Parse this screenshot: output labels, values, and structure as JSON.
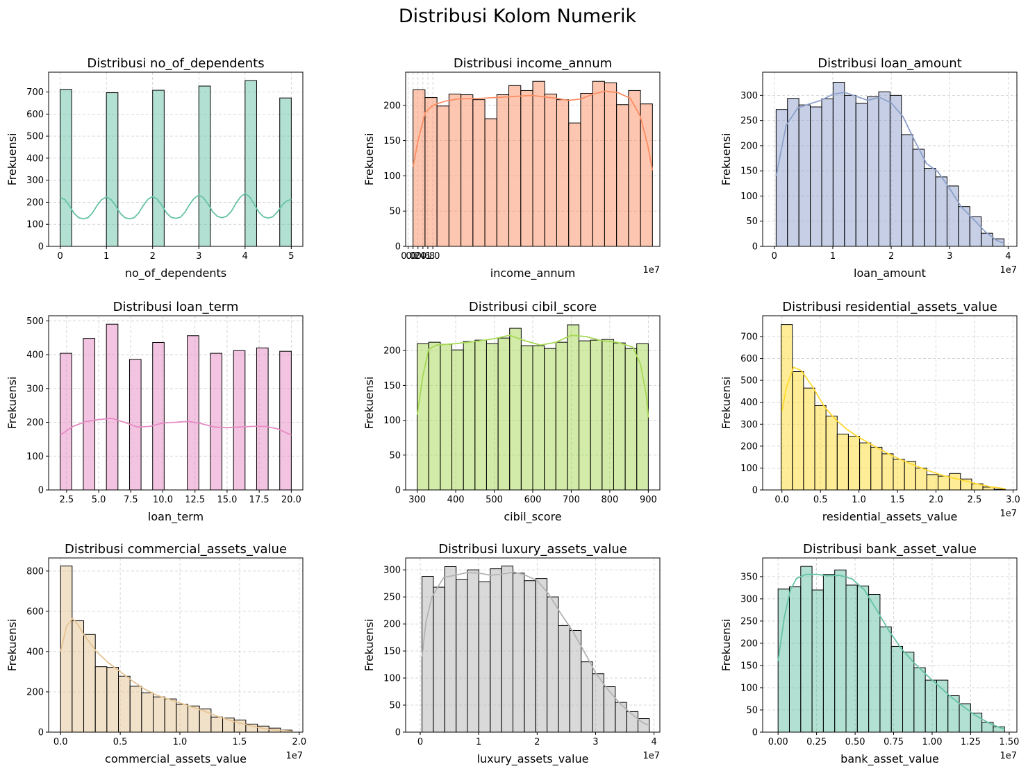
{
  "figure": {
    "suptitle": "Distribusi Kolom Numerik",
    "ylabel": "Frekuensi"
  },
  "chart_data": [
    {
      "type": "bar",
      "variant": "histogram+kde",
      "grid": true,
      "title": "Distribusi no_of_dependents",
      "xlabel": "no_of_dependents",
      "ylabel": "Frekuensi",
      "color": "#66c2a5",
      "edge_color": "#000000",
      "xlim": [
        -0.25,
        5.25
      ],
      "ylim": [
        0,
        790
      ],
      "xticks": [
        0,
        1,
        2,
        3,
        4,
        5
      ],
      "yticks": [
        0,
        100,
        200,
        300,
        400,
        500,
        600,
        700
      ],
      "bin_edges": [
        0,
        0.25,
        0.5,
        0.75,
        1,
        1.25,
        1.5,
        1.75,
        2,
        2.25,
        2.5,
        2.75,
        3,
        3.25,
        3.5,
        3.75,
        4,
        4.25,
        4.5,
        4.75,
        5
      ],
      "values": [
        712,
        0,
        0,
        0,
        697,
        0,
        0,
        0,
        708,
        0,
        0,
        0,
        727,
        0,
        0,
        0,
        752,
        0,
        0,
        673
      ],
      "kde": {
        "x": [
          0,
          0.1,
          0.2,
          0.3,
          0.4,
          0.5,
          0.6,
          0.7,
          0.8,
          0.9,
          1.0,
          1.1,
          1.2,
          1.3,
          1.4,
          1.5,
          1.6,
          1.7,
          1.8,
          1.9,
          2.0,
          2.1,
          2.2,
          2.3,
          2.4,
          2.5,
          2.6,
          2.7,
          2.8,
          2.9,
          3.0,
          3.1,
          3.2,
          3.3,
          3.4,
          3.5,
          3.6,
          3.7,
          3.8,
          3.9,
          4.0,
          4.1,
          4.2,
          4.3,
          4.4,
          4.5,
          4.6,
          4.7,
          4.8,
          4.9,
          5.0
        ],
        "y": [
          222,
          212,
          185,
          150,
          130,
          125,
          130,
          152,
          186,
          212,
          224,
          212,
          185,
          150,
          130,
          125,
          130,
          152,
          186,
          214,
          226,
          214,
          186,
          152,
          132,
          127,
          132,
          155,
          190,
          218,
          233,
          220,
          192,
          157,
          136,
          130,
          136,
          158,
          194,
          224,
          240,
          224,
          190,
          155,
          134,
          128,
          134,
          156,
          186,
          206,
          213
        ]
      }
    },
    {
      "type": "bar",
      "variant": "histogram+kde",
      "grid": true,
      "title": "Distribusi income_annum",
      "xlabel": "income_annum",
      "ylabel": "Frekuensi",
      "offset_text": "1e7",
      "color": "#fc8d62",
      "edge_color": "#000000",
      "xlim": [
        -0.1,
        10.2
      ],
      "ylim": [
        0,
        247
      ],
      "xticks": [
        0.0,
        0.2,
        0.4,
        0.6,
        0.8,
        1.0
      ],
      "x_tick_scale": 10,
      "yticks": [
        0,
        50,
        100,
        150,
        200
      ],
      "bin_edges": [
        0.2,
        0.685,
        1.17,
        1.655,
        2.14,
        2.625,
        3.11,
        3.595,
        4.08,
        4.565,
        5.05,
        5.535,
        6.02,
        6.505,
        6.99,
        7.475,
        7.96,
        8.445,
        8.93,
        9.415,
        9.9
      ],
      "values": [
        222,
        211,
        199,
        216,
        215,
        208,
        181,
        215,
        228,
        221,
        234,
        216,
        208,
        175,
        217,
        234,
        232,
        201,
        221,
        202
      ],
      "kde": {
        "x": [
          0.2,
          0.4,
          0.7,
          1.0,
          1.5,
          2.0,
          3.0,
          4.0,
          5.0,
          6.0,
          6.5,
          7.0,
          7.5,
          8.0,
          8.5,
          9.0,
          9.4,
          9.7,
          9.9
        ],
        "y": [
          113,
          150,
          190,
          200,
          206,
          209,
          210,
          212,
          214,
          210,
          207,
          209,
          216,
          220,
          218,
          210,
          185,
          145,
          108
        ]
      }
    },
    {
      "type": "bar",
      "variant": "histogram+kde",
      "grid": true,
      "title": "Distribusi loan_amount",
      "xlabel": "loan_amount",
      "ylabel": "Frekuensi",
      "offset_text": "1e7",
      "color": "#8da0cb",
      "edge_color": "#000000",
      "xlim": [
        -0.2,
        4.15
      ],
      "ylim": [
        0,
        346
      ],
      "xticks": [
        0,
        1,
        2,
        3,
        4
      ],
      "yticks": [
        0,
        50,
        100,
        150,
        200,
        250,
        300
      ],
      "bin_edges": [
        0.03,
        0.225,
        0.42,
        0.615,
        0.81,
        1.005,
        1.2,
        1.395,
        1.59,
        1.785,
        1.98,
        2.175,
        2.37,
        2.565,
        2.76,
        2.955,
        3.15,
        3.345,
        3.54,
        3.735,
        3.93
      ],
      "values": [
        272,
        294,
        281,
        277,
        293,
        326,
        300,
        284,
        297,
        307,
        300,
        222,
        193,
        155,
        138,
        120,
        79,
        59,
        26,
        15
      ],
      "kde": {
        "x": [
          0.03,
          0.2,
          0.4,
          0.6,
          0.8,
          1.0,
          1.2,
          1.4,
          1.6,
          1.8,
          2.0,
          2.2,
          2.4,
          2.6,
          2.8,
          3.0,
          3.2,
          3.4,
          3.6,
          3.8,
          3.93
        ],
        "y": [
          140,
          240,
          275,
          283,
          290,
          302,
          306,
          298,
          290,
          296,
          285,
          258,
          210,
          165,
          148,
          115,
          78,
          55,
          30,
          12,
          6
        ]
      }
    },
    {
      "type": "bar",
      "variant": "histogram+kde",
      "grid": true,
      "title": "Distribusi loan_term",
      "xlabel": "loan_term",
      "ylabel": "Frekuensi",
      "color": "#e78ac3",
      "edge_color": "#000000",
      "xlim": [
        1.1,
        20.9
      ],
      "ylim": [
        0,
        515
      ],
      "xticks": [
        2.5,
        5.0,
        7.5,
        10.0,
        12.5,
        15.0,
        17.5,
        20.0
      ],
      "yticks": [
        0,
        100,
        200,
        300,
        400,
        500
      ],
      "bin_edges": [
        2,
        2.9,
        3.8,
        4.7,
        5.6,
        6.5,
        7.4,
        8.3,
        9.2,
        10.1,
        11.0,
        11.9,
        12.8,
        13.7,
        14.6,
        15.5,
        16.4,
        17.3,
        18.2,
        19.1,
        20.0
      ],
      "values": [
        404,
        0,
        448,
        0,
        490,
        0,
        386,
        0,
        436,
        0,
        0,
        456,
        0,
        404,
        0,
        412,
        0,
        420,
        0,
        410
      ],
      "kde": {
        "x": [
          2,
          3,
          4,
          5,
          6,
          7,
          8,
          9,
          10,
          11,
          12,
          13,
          14,
          15,
          16,
          17,
          18,
          19,
          20
        ],
        "y": [
          162,
          188,
          202,
          208,
          212,
          200,
          186,
          188,
          198,
          200,
          203,
          196,
          186,
          184,
          186,
          188,
          188,
          180,
          162
        ]
      }
    },
    {
      "type": "bar",
      "variant": "histogram+kde",
      "grid": true,
      "title": "Distribusi cibil_score",
      "xlabel": "cibil_score",
      "ylabel": "Frekuensi",
      "color": "#a6d854",
      "edge_color": "#000000",
      "xlim": [
        270,
        930
      ],
      "ylim": [
        0,
        250
      ],
      "xticks": [
        300,
        400,
        500,
        600,
        700,
        800,
        900
      ],
      "yticks": [
        0,
        50,
        100,
        150,
        200
      ],
      "bin_edges": [
        300,
        330,
        360,
        390,
        420,
        450,
        480,
        510,
        540,
        570,
        600,
        630,
        660,
        690,
        720,
        750,
        780,
        810,
        840,
        870,
        900
      ],
      "values": [
        210,
        212,
        209,
        201,
        213,
        215,
        210,
        218,
        232,
        207,
        207,
        203,
        212,
        237,
        214,
        215,
        216,
        211,
        203,
        210
      ],
      "kde": {
        "x": [
          300,
          315,
          330,
          350,
          400,
          450,
          500,
          540,
          580,
          620,
          660,
          700,
          740,
          780,
          820,
          860,
          880,
          895,
          900
        ],
        "y": [
          108,
          165,
          202,
          208,
          210,
          213,
          217,
          222,
          214,
          208,
          212,
          222,
          220,
          214,
          212,
          205,
          180,
          135,
          104
        ]
      }
    },
    {
      "type": "bar",
      "variant": "histogram+kde",
      "grid": true,
      "title": "Distribusi residential_assets_value",
      "xlabel": "residential_assets_value",
      "ylabel": "Frekuensi",
      "offset_text": "1e7",
      "color": "#ffd92f",
      "edge_color": "#000000",
      "xlim": [
        -0.25,
        3.05
      ],
      "ylim": [
        0,
        795
      ],
      "xticks": [
        0.0,
        0.5,
        1.0,
        1.5,
        2.0,
        2.5,
        3.0
      ],
      "yticks": [
        0,
        100,
        200,
        300,
        400,
        500,
        600,
        700
      ],
      "bin_edges": [
        -0.01,
        0.1355,
        0.281,
        0.4265,
        0.572,
        0.7175,
        0.863,
        1.0085,
        1.154,
        1.2995,
        1.445,
        1.5905,
        1.736,
        1.8815,
        2.027,
        2.1725,
        2.318,
        2.4635,
        2.609,
        2.7545,
        2.9
      ],
      "values": [
        755,
        540,
        465,
        385,
        337,
        255,
        245,
        215,
        195,
        165,
        140,
        130,
        100,
        70,
        63,
        75,
        50,
        28,
        13,
        3
      ],
      "kde": {
        "x": [
          0.0,
          0.06,
          0.15,
          0.25,
          0.4,
          0.55,
          0.7,
          0.85,
          1.0,
          1.15,
          1.3,
          1.5,
          1.7,
          1.9,
          2.1,
          2.3,
          2.5,
          2.7,
          2.9
        ],
        "y": [
          360,
          470,
          560,
          545,
          470,
          380,
          320,
          275,
          240,
          210,
          180,
          145,
          115,
          88,
          65,
          48,
          30,
          15,
          5
        ]
      }
    },
    {
      "type": "bar",
      "variant": "histogram+kde",
      "grid": true,
      "title": "Distribusi commercial_assets_value",
      "xlabel": "commercial_assets_value",
      "ylabel": "Frekuensi",
      "offset_text": "1e7",
      "color": "#e5c494",
      "edge_color": "#000000",
      "xlim": [
        -0.1,
        2.03
      ],
      "ylim": [
        0,
        865
      ],
      "xticks": [
        0.0,
        0.5,
        1.0,
        1.5,
        2.0
      ],
      "yticks": [
        0,
        200,
        400,
        600,
        800
      ],
      "bin_edges": [
        0,
        0.097,
        0.194,
        0.291,
        0.388,
        0.485,
        0.582,
        0.679,
        0.776,
        0.873,
        0.97,
        1.067,
        1.164,
        1.261,
        1.358,
        1.455,
        1.552,
        1.649,
        1.746,
        1.843,
        1.94
      ],
      "values": [
        825,
        553,
        485,
        325,
        322,
        278,
        228,
        195,
        175,
        165,
        138,
        130,
        115,
        75,
        70,
        60,
        40,
        30,
        20,
        10
      ],
      "kde": {
        "x": [
          0.0,
          0.05,
          0.1,
          0.15,
          0.2,
          0.3,
          0.4,
          0.5,
          0.6,
          0.7,
          0.8,
          0.9,
          1.0,
          1.1,
          1.2,
          1.3,
          1.4,
          1.5,
          1.6,
          1.7,
          1.8,
          1.94
        ],
        "y": [
          400,
          525,
          565,
          530,
          480,
          400,
          345,
          300,
          255,
          215,
          185,
          165,
          145,
          125,
          105,
          82,
          62,
          45,
          30,
          18,
          10,
          5
        ]
      }
    },
    {
      "type": "bar",
      "variant": "histogram+kde",
      "grid": true,
      "title": "Distribusi luxury_assets_value",
      "xlabel": "luxury_assets_value",
      "ylabel": "Frekuensi",
      "offset_text": "1e7",
      "color": "#b3b3b3",
      "edge_color": "#000000",
      "xlim": [
        -0.25,
        4.1
      ],
      "ylim": [
        0,
        322
      ],
      "xticks": [
        0,
        1,
        2,
        3,
        4
      ],
      "yticks": [
        0,
        50,
        100,
        150,
        200,
        250,
        300
      ],
      "bin_edges": [
        0.03,
        0.2245,
        0.419,
        0.6135,
        0.808,
        1.0025,
        1.197,
        1.3915,
        1.586,
        1.7805,
        1.975,
        2.1695,
        2.364,
        2.5585,
        2.753,
        2.9475,
        3.142,
        3.3365,
        3.531,
        3.7255,
        3.92
      ],
      "values": [
        288,
        268,
        306,
        282,
        300,
        278,
        302,
        307,
        294,
        280,
        284,
        250,
        197,
        188,
        130,
        108,
        84,
        55,
        38,
        25
      ],
      "kde": {
        "x": [
          0.03,
          0.1,
          0.2,
          0.4,
          0.6,
          0.8,
          1.0,
          1.2,
          1.4,
          1.6,
          1.8,
          2.0,
          2.2,
          2.4,
          2.6,
          2.8,
          3.0,
          3.2,
          3.4,
          3.6,
          3.8,
          3.92
        ],
        "y": [
          140,
          205,
          250,
          286,
          290,
          295,
          294,
          290,
          292,
          296,
          290,
          280,
          255,
          220,
          188,
          150,
          110,
          80,
          55,
          35,
          18,
          12
        ]
      }
    },
    {
      "type": "bar",
      "variant": "histogram+kde",
      "grid": true,
      "title": "Distribusi bank_asset_value",
      "xlabel": "bank_asset_value",
      "ylabel": "Frekuensi",
      "offset_text": "1e7",
      "color": "#66c2a5",
      "edge_color": "#000000",
      "xlim": [
        -0.1,
        1.55
      ],
      "ylim": [
        0,
        392
      ],
      "xticks": [
        0.0,
        0.25,
        0.5,
        0.75,
        1.0,
        1.25,
        1.5
      ],
      "yticks": [
        0,
        50,
        100,
        150,
        200,
        250,
        300,
        350
      ],
      "bin_edges": [
        0,
        0.0735,
        0.147,
        0.2205,
        0.294,
        0.3675,
        0.441,
        0.5145,
        0.588,
        0.6615,
        0.735,
        0.8085,
        0.882,
        0.9555,
        1.029,
        1.1025,
        1.176,
        1.2495,
        1.323,
        1.3965,
        1.47
      ],
      "values": [
        322,
        327,
        373,
        320,
        355,
        365,
        331,
        329,
        310,
        237,
        193,
        180,
        145,
        117,
        117,
        82,
        64,
        43,
        22,
        12
      ],
      "kde": {
        "x": [
          0.0,
          0.04,
          0.08,
          0.12,
          0.18,
          0.25,
          0.32,
          0.4,
          0.48,
          0.56,
          0.64,
          0.72,
          0.8,
          0.88,
          0.96,
          1.04,
          1.12,
          1.2,
          1.28,
          1.36,
          1.44,
          1.47
        ],
        "y": [
          160,
          258,
          320,
          346,
          355,
          355,
          352,
          353,
          345,
          320,
          275,
          228,
          188,
          157,
          130,
          105,
          80,
          58,
          38,
          22,
          10,
          7
        ]
      }
    }
  ]
}
